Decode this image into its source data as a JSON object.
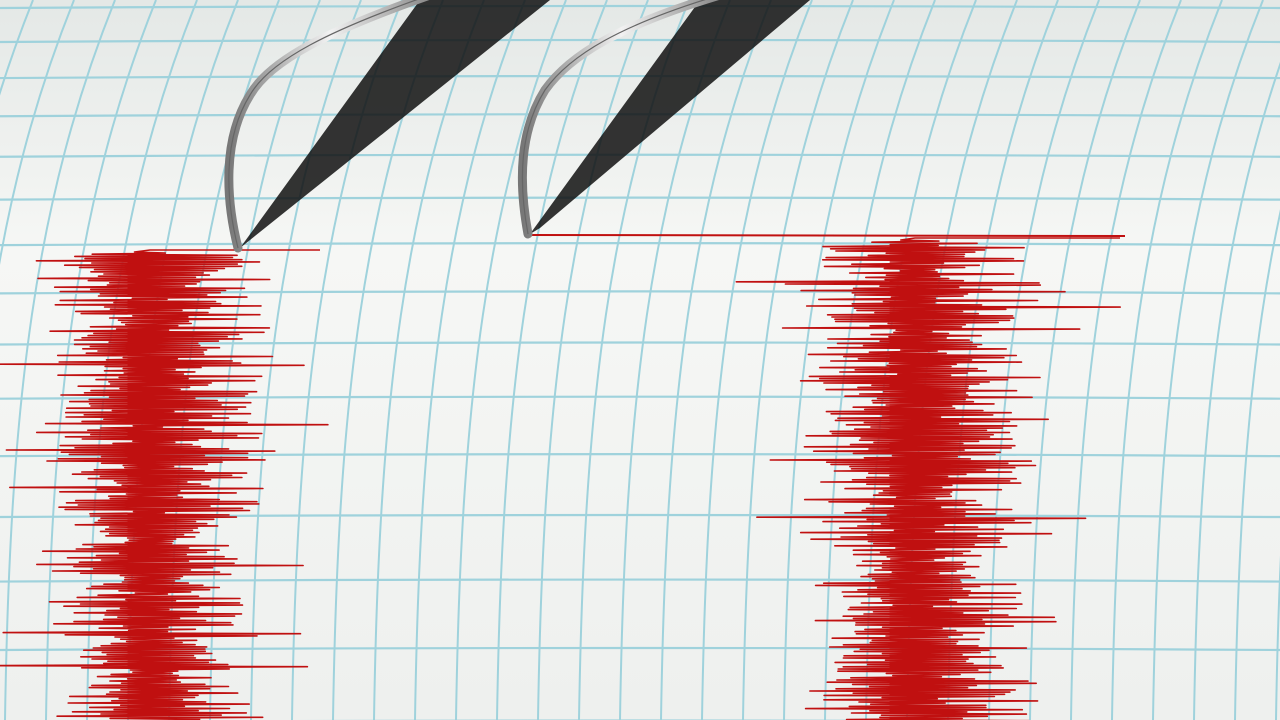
{
  "colors": {
    "paper": "#f3f5f2",
    "grid": "#9fd2dc",
    "trace": "#c01010",
    "needle": "#b8b8b8"
  },
  "icons": [
    "seismograph-needle-left",
    "seismograph-needle-right"
  ]
}
